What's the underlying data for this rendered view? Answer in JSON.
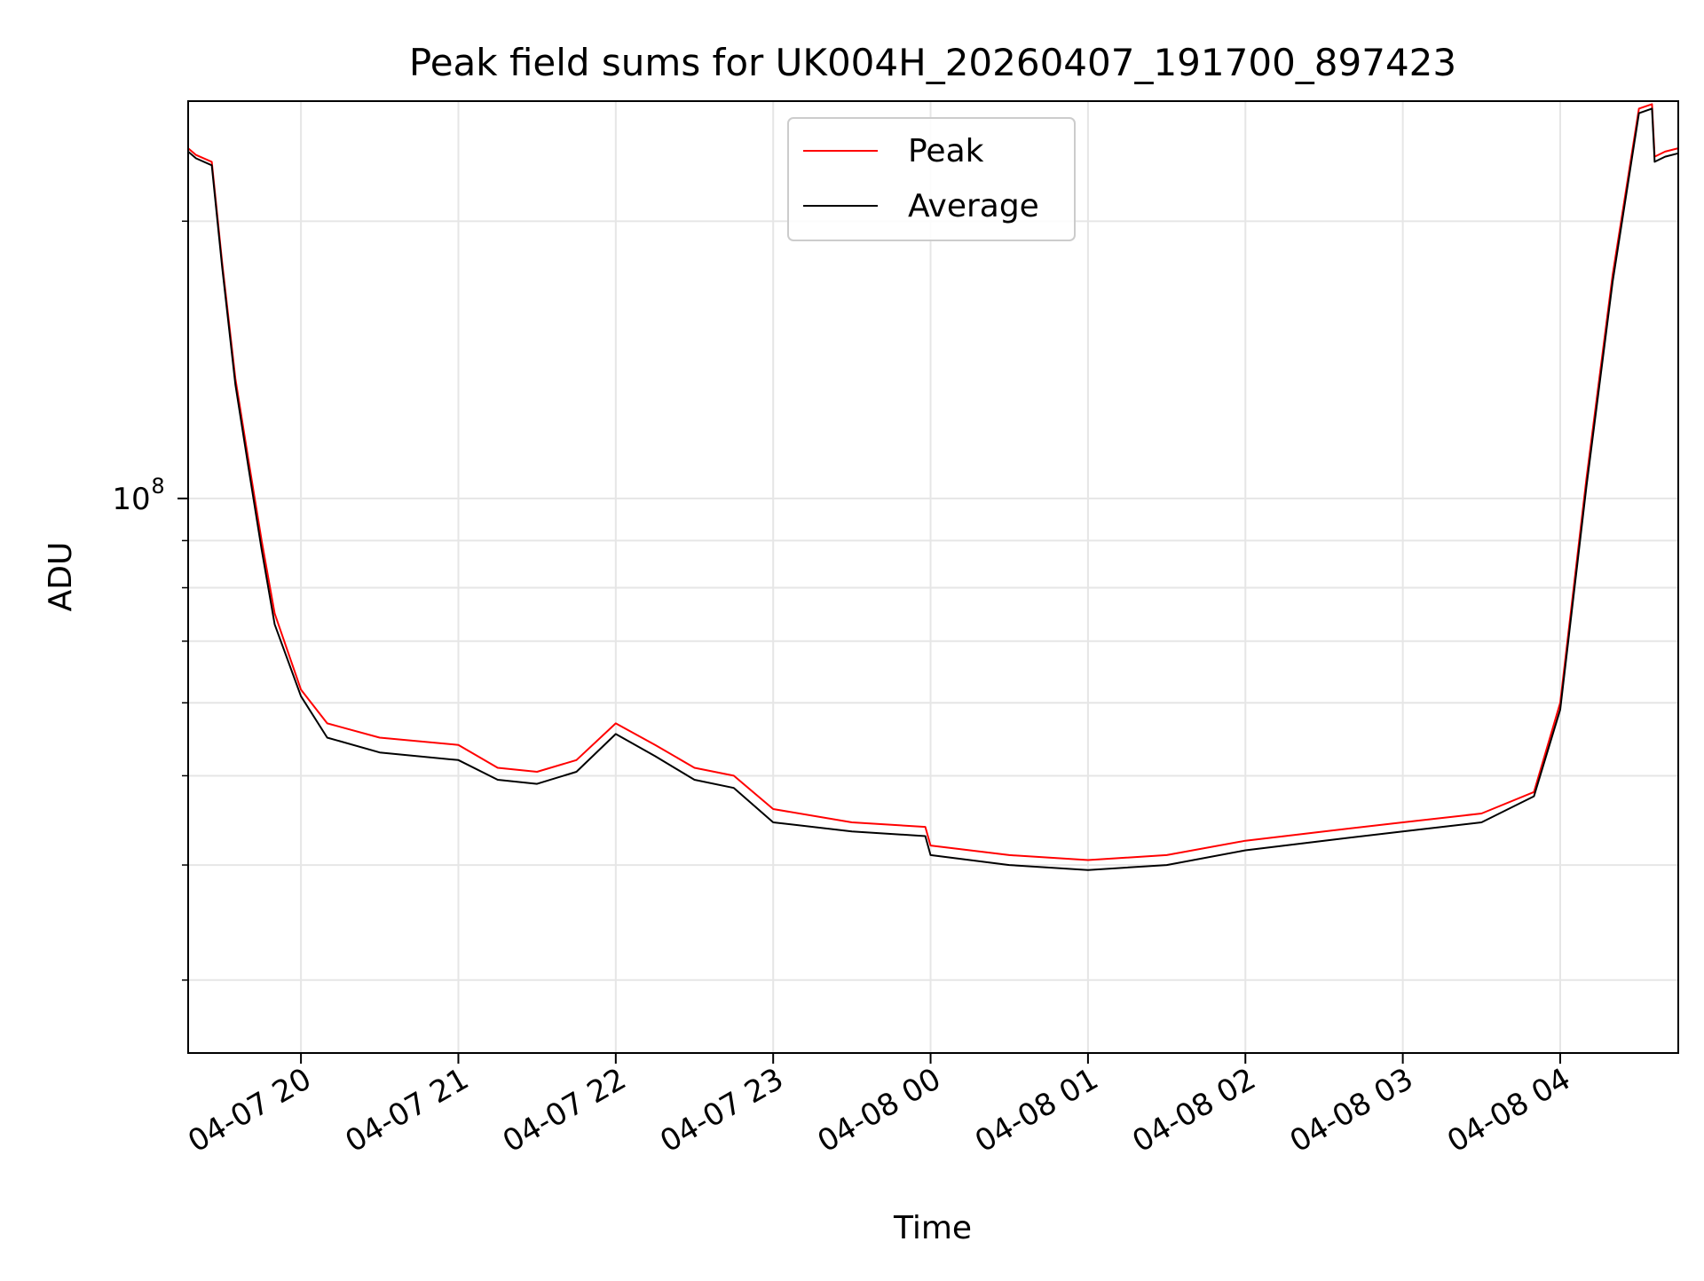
{
  "chart_data": {
    "type": "line",
    "title": "Peak field sums for UK004H_20260407_191700_897423",
    "xlabel": "Time",
    "ylabel": "ADU",
    "yscale": "log",
    "ylim": [
      25000000,
      270000000
    ],
    "xlim": [
      "2026-04-07 19:17",
      "2026-04-08 04:45"
    ],
    "x_ticks": [
      {
        "value": "2026-04-07 20:00",
        "label": "04-07 20"
      },
      {
        "value": "2026-04-07 21:00",
        "label": "04-07 21"
      },
      {
        "value": "2026-04-07 22:00",
        "label": "04-07 22"
      },
      {
        "value": "2026-04-07 23:00",
        "label": "04-07 23"
      },
      {
        "value": "2026-04-08 00:00",
        "label": "04-08 00"
      },
      {
        "value": "2026-04-08 01:00",
        "label": "04-08 01"
      },
      {
        "value": "2026-04-08 02:00",
        "label": "04-08 02"
      },
      {
        "value": "2026-04-08 03:00",
        "label": "04-08 03"
      },
      {
        "value": "2026-04-08 04:00",
        "label": "04-08 04"
      }
    ],
    "y_major_ticks": [
      {
        "value": 100000000,
        "label_base": "10",
        "label_exp": "8"
      }
    ],
    "y_minor_ticks": [
      30000000,
      40000000,
      50000000,
      60000000,
      70000000,
      80000000,
      90000000,
      200000000
    ],
    "grid": true,
    "legend_position": "upper center",
    "series": [
      {
        "name": "Peak",
        "color": "#ff0000",
        "x": [
          "2026-04-07 19:17",
          "2026-04-07 19:20",
          "2026-04-07 19:26",
          "2026-04-07 19:30",
          "2026-04-07 19:35",
          "2026-04-07 19:40",
          "2026-04-07 19:45",
          "2026-04-07 19:50",
          "2026-04-07 20:00",
          "2026-04-07 20:10",
          "2026-04-07 20:30",
          "2026-04-07 21:00",
          "2026-04-07 21:15",
          "2026-04-07 21:30",
          "2026-04-07 21:45",
          "2026-04-07 22:00",
          "2026-04-07 22:15",
          "2026-04-07 22:30",
          "2026-04-07 22:45",
          "2026-04-07 23:00",
          "2026-04-07 23:30",
          "2026-04-07 23:58",
          "2026-04-08 00:00",
          "2026-04-08 00:30",
          "2026-04-08 01:00",
          "2026-04-08 01:30",
          "2026-04-08 02:00",
          "2026-04-08 02:30",
          "2026-04-08 03:00",
          "2026-04-08 03:30",
          "2026-04-08 03:50",
          "2026-04-08 04:00",
          "2026-04-08 04:10",
          "2026-04-08 04:20",
          "2026-04-08 04:30",
          "2026-04-08 04:35",
          "2026-04-08 04:36",
          "2026-04-08 04:40",
          "2026-04-08 04:45"
        ],
        "y": [
          240000000,
          236000000,
          232000000,
          180000000,
          135000000,
          110000000,
          90000000,
          75000000,
          62000000,
          57000000,
          55000000,
          54000000,
          51000000,
          50500000,
          52000000,
          57000000,
          54000000,
          51000000,
          50000000,
          46000000,
          44500000,
          44000000,
          42000000,
          41000000,
          40500000,
          41000000,
          42500000,
          43500000,
          44500000,
          45500000,
          48000000,
          60000000,
          105000000,
          175000000,
          265000000,
          268000000,
          235000000,
          238000000,
          240000000
        ]
      },
      {
        "name": "Average",
        "color": "#000000",
        "x": [
          "2026-04-07 19:17",
          "2026-04-07 19:20",
          "2026-04-07 19:26",
          "2026-04-07 19:30",
          "2026-04-07 19:35",
          "2026-04-07 19:40",
          "2026-04-07 19:45",
          "2026-04-07 19:50",
          "2026-04-07 20:00",
          "2026-04-07 20:10",
          "2026-04-07 20:30",
          "2026-04-07 21:00",
          "2026-04-07 21:15",
          "2026-04-07 21:30",
          "2026-04-07 21:45",
          "2026-04-07 22:00",
          "2026-04-07 22:15",
          "2026-04-07 22:30",
          "2026-04-07 22:45",
          "2026-04-07 23:00",
          "2026-04-07 23:30",
          "2026-04-07 23:58",
          "2026-04-08 00:00",
          "2026-04-08 00:30",
          "2026-04-08 01:00",
          "2026-04-08 01:30",
          "2026-04-08 02:00",
          "2026-04-08 02:30",
          "2026-04-08 03:00",
          "2026-04-08 03:30",
          "2026-04-08 03:50",
          "2026-04-08 04:00",
          "2026-04-08 04:10",
          "2026-04-08 04:20",
          "2026-04-08 04:30",
          "2026-04-08 04:35",
          "2026-04-08 04:36",
          "2026-04-08 04:40",
          "2026-04-08 04:45"
        ],
        "y": [
          238000000,
          234000000,
          230000000,
          178000000,
          133000000,
          108000000,
          88000000,
          73000000,
          61000000,
          55000000,
          53000000,
          52000000,
          49500000,
          49000000,
          50500000,
          55500000,
          52500000,
          49500000,
          48500000,
          44500000,
          43500000,
          43000000,
          41000000,
          40000000,
          39500000,
          40000000,
          41500000,
          42500000,
          43500000,
          44500000,
          47500000,
          59000000,
          103000000,
          172000000,
          262000000,
          265000000,
          232000000,
          235000000,
          237000000
        ]
      }
    ]
  }
}
